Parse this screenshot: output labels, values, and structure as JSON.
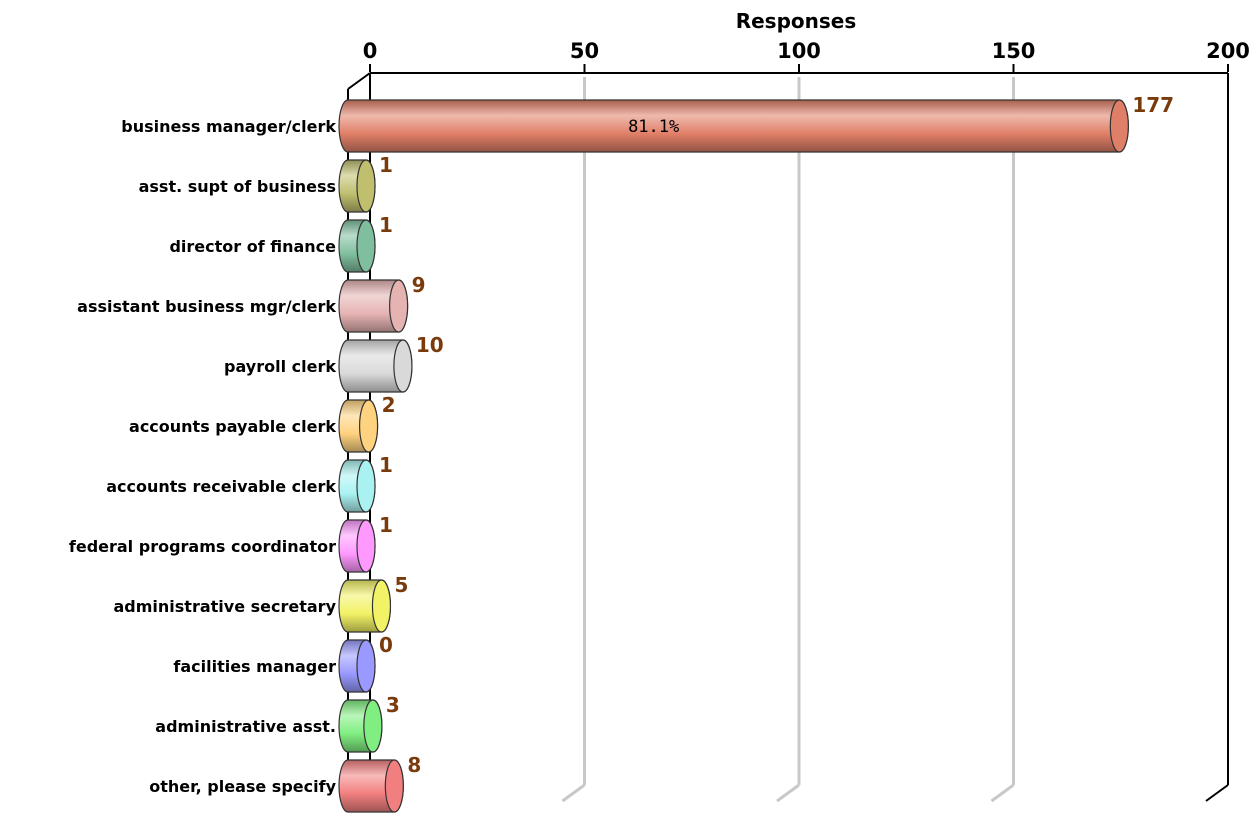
{
  "chart_data": {
    "type": "bar",
    "orientation": "horizontal",
    "xlabel": "Responses",
    "xlim": [
      0,
      200
    ],
    "xticks": [
      0,
      50,
      100,
      150,
      200
    ],
    "grid": true,
    "categories": [
      "business manager/clerk",
      "asst. supt of business",
      "director of finance",
      "assistant business mgr/clerk",
      "payroll clerk",
      "accounts payable clerk",
      "accounts receivable clerk",
      "federal programs coordinator",
      "administrative secretary",
      "facilities manager",
      "administrative asst.",
      "other, please specify"
    ],
    "values": [
      177,
      1,
      1,
      9,
      10,
      2,
      1,
      1,
      5,
      0,
      3,
      8
    ],
    "data_labels": [
      "177",
      "1",
      "1",
      "9",
      "10",
      "2",
      "1",
      "1",
      "5",
      "0",
      "3",
      "8"
    ],
    "percent_labels": [
      "81.1%",
      "",
      "",
      "",
      "",
      "",
      "",
      "",
      "",
      "",
      "",
      ""
    ],
    "colors": [
      "#e07f68",
      "#bfbf6e",
      "#7fbf9f",
      "#e6b3b3",
      "#d9d9d9",
      "#ffd27f",
      "#aaf2f2",
      "#ff99ff",
      "#f2f266",
      "#9999ff",
      "#80ee80",
      "#f27f7f"
    ]
  }
}
